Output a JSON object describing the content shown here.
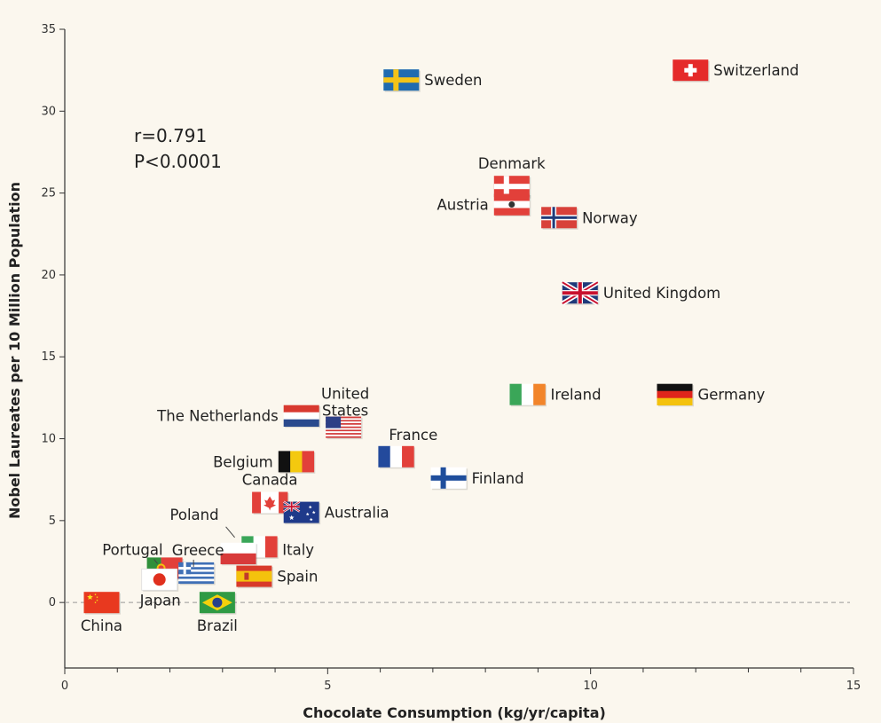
{
  "chart_data": {
    "type": "scatter",
    "xlabel": "Chocolate Consumption (kg/yr/capita)",
    "ylabel": "Nobel Laureates per 10 Million Population",
    "xlim": [
      0,
      15
    ],
    "ylim": [
      -4,
      35
    ],
    "xticks": [
      0,
      5,
      10,
      15
    ],
    "yticks": [
      0,
      5,
      10,
      15,
      20,
      25,
      30,
      35
    ],
    "grid": false,
    "reference_line": {
      "y": 0,
      "style": "dashed"
    },
    "stats": {
      "r": "r=0.791",
      "p": "P<0.0001"
    },
    "points": [
      {
        "name": "Switzerland",
        "x": 11.9,
        "y": 32.5,
        "flag": "switzerland-flag"
      },
      {
        "name": "Sweden",
        "x": 6.4,
        "y": 31.9,
        "flag": "sweden-flag"
      },
      {
        "name": "Denmark",
        "x": 8.5,
        "y": 25.4,
        "flag": "denmark-flag"
      },
      {
        "name": "Austria",
        "x": 8.5,
        "y": 24.3,
        "flag": "austria-flag"
      },
      {
        "name": "Norway",
        "x": 9.4,
        "y": 23.5,
        "flag": "norway-flag"
      },
      {
        "name": "United Kingdom",
        "x": 9.8,
        "y": 18.9,
        "flag": "united-kingdom-flag"
      },
      {
        "name": "Ireland",
        "x": 8.8,
        "y": 12.7,
        "flag": "ireland-flag"
      },
      {
        "name": "Germany",
        "x": 11.6,
        "y": 12.7,
        "flag": "germany-flag"
      },
      {
        "name": "The Netherlands",
        "x": 4.5,
        "y": 11.4,
        "flag": "netherlands-flag"
      },
      {
        "name": "United States",
        "x": 5.3,
        "y": 10.7,
        "flag": "united-states-flag"
      },
      {
        "name": "France",
        "x": 6.3,
        "y": 8.9,
        "flag": "france-flag"
      },
      {
        "name": "Belgium",
        "x": 4.4,
        "y": 8.6,
        "flag": "belgium-flag"
      },
      {
        "name": "Finland",
        "x": 7.3,
        "y": 7.6,
        "flag": "finland-flag"
      },
      {
        "name": "Canada",
        "x": 3.9,
        "y": 6.1,
        "flag": "canada-flag"
      },
      {
        "name": "Australia",
        "x": 4.5,
        "y": 5.5,
        "flag": "australia-flag"
      },
      {
        "name": "Italy",
        "x": 3.7,
        "y": 3.4,
        "flag": "italy-flag"
      },
      {
        "name": "Poland",
        "x": 3.3,
        "y": 3.0,
        "flag": "poland-flag"
      },
      {
        "name": "Spain",
        "x": 3.6,
        "y": 1.6,
        "flag": "spain-flag"
      },
      {
        "name": "Portugal",
        "x": 1.9,
        "y": 2.1,
        "flag": "portugal-flag"
      },
      {
        "name": "Greece",
        "x": 2.5,
        "y": 1.8,
        "flag": "greece-flag"
      },
      {
        "name": "Japan",
        "x": 1.8,
        "y": 1.4,
        "flag": "japan-flag"
      },
      {
        "name": "Brazil",
        "x": 2.9,
        "y": 0.0,
        "flag": "brazil-flag"
      },
      {
        "name": "China",
        "x": 0.7,
        "y": 0.0,
        "flag": "china-flag"
      }
    ]
  }
}
